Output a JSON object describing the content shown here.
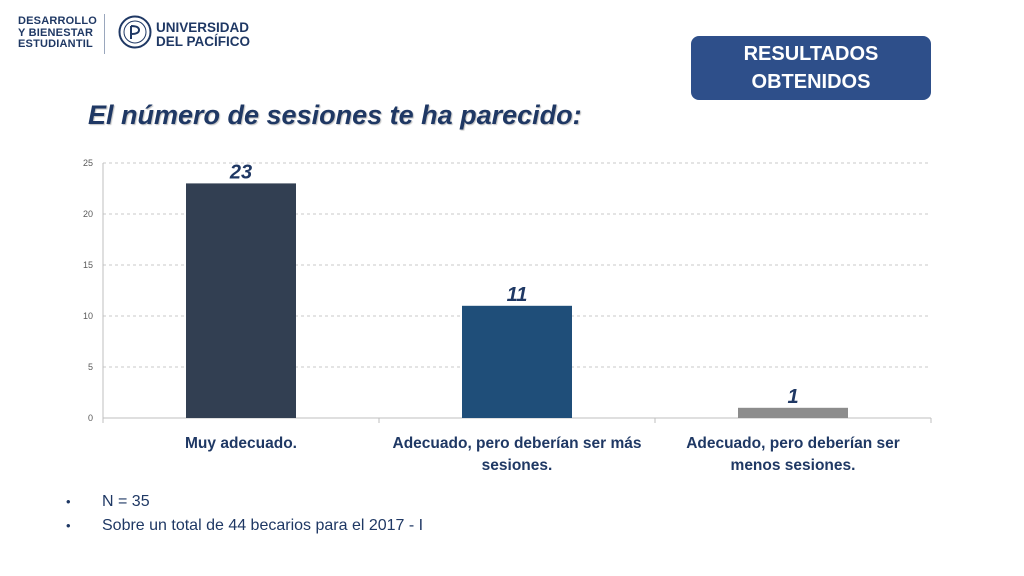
{
  "header": {
    "left_logo_lines": [
      "DESARROLLO",
      "Y BIENESTAR",
      "ESTUDIANTIL"
    ],
    "right_logo_lines": [
      "UNIVERSIDAD",
      "DEL PACÍFICO"
    ],
    "badge_lines": [
      "RESULTADOS",
      "OBTENIDOS"
    ]
  },
  "title": "El número de sesiones te ha parecido:",
  "colors": {
    "bar1": "#323f52",
    "bar2": "#1f4e79",
    "bar3": "#8c8c8c",
    "text": "#1f3864",
    "badge": "#2e4f8a"
  },
  "chart_data": {
    "type": "bar",
    "categories": [
      "Muy adecuado.",
      "Adecuado, pero deberían ser más sesiones.",
      "Adecuado, pero deberían ser menos sesiones."
    ],
    "category_label_lines": [
      [
        "Muy adecuado."
      ],
      [
        "Adecuado, pero deberían ser más",
        "sesiones."
      ],
      [
        "Adecuado, pero deberían ser",
        "menos sesiones."
      ]
    ],
    "values": [
      23,
      11,
      1
    ],
    "data_labels": [
      "23",
      "11",
      "1"
    ],
    "ylim": [
      0,
      25
    ],
    "yticks": [
      0,
      5,
      10,
      15,
      20,
      25
    ],
    "grid": true,
    "title": "",
    "xlabel": "",
    "ylabel": ""
  },
  "notes": [
    "N = 35",
    "Sobre un total de 44 becarios para el 2017 - I"
  ]
}
